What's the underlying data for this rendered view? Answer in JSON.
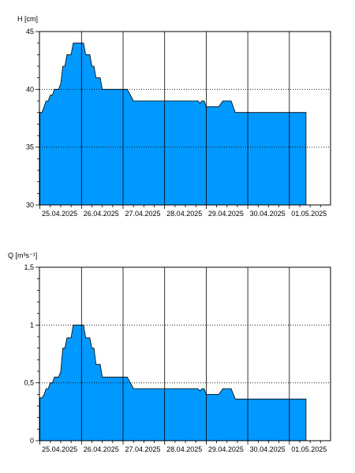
{
  "chart_data": [
    {
      "type": "area",
      "ylabel": "H [cm]",
      "ylim": [
        30,
        45
      ],
      "yticks": [
        30,
        35,
        40,
        45
      ],
      "yticks_labels": [
        "30",
        "35",
        "40",
        "45"
      ],
      "ygrid_dotted": [
        35,
        40
      ],
      "x_dates": [
        "25.04.2025",
        "26.04.2025",
        "27.04.2025",
        "28.04.2025",
        "29.04.2025",
        "30.04.2025",
        "01.05.2025"
      ],
      "fill_color": "#0099ff",
      "x": [
        0.0,
        0.05,
        0.1,
        0.15,
        0.2,
        0.25,
        0.3,
        0.35,
        0.4,
        0.45,
        0.5,
        0.55,
        0.6,
        0.65,
        0.7,
        0.75,
        0.8,
        0.85,
        0.95,
        1.05,
        1.1,
        1.15,
        1.2,
        1.25,
        1.3,
        1.35,
        1.4,
        1.45,
        1.5,
        1.55,
        1.65,
        1.7,
        1.75,
        1.8,
        1.95,
        2.1,
        2.25,
        2.45,
        2.6,
        2.75,
        2.9,
        3.0,
        3.2,
        3.5,
        3.8,
        3.85,
        3.9,
        3.95,
        4.0,
        4.3,
        4.4,
        4.6,
        4.7,
        5.0,
        5.5,
        6.0,
        6.4
      ],
      "values": [
        38,
        38,
        38.5,
        39,
        39,
        39.5,
        39.5,
        40,
        40,
        40,
        40.5,
        42,
        42,
        43,
        43,
        43,
        44,
        44,
        44,
        44,
        43,
        43,
        43,
        42,
        42,
        41,
        41,
        41,
        40,
        40,
        40,
        40,
        40,
        40,
        40,
        40,
        39,
        39,
        39,
        39,
        39,
        39,
        39,
        39,
        39,
        38.8,
        39,
        39,
        38.5,
        38.5,
        39,
        39,
        38,
        38,
        38,
        38,
        38
      ]
    },
    {
      "type": "area",
      "ylabel": "Q [m³s⁻¹]",
      "ylim": [
        0,
        1.5
      ],
      "yticks": [
        0,
        0.5,
        1,
        1.5
      ],
      "yticks_labels": [
        "0",
        "0,5",
        "1",
        "1,5"
      ],
      "ygrid_dotted": [
        0.5,
        1
      ],
      "x_dates": [
        "25.04.2025",
        "26.04.2025",
        "27.04.2025",
        "28.04.2025",
        "29.04.2025",
        "30.04.2025",
        "01.05.2025"
      ],
      "fill_color": "#0099ff",
      "x": [
        0.0,
        0.05,
        0.1,
        0.15,
        0.2,
        0.25,
        0.3,
        0.35,
        0.4,
        0.45,
        0.5,
        0.55,
        0.6,
        0.65,
        0.7,
        0.75,
        0.8,
        0.85,
        0.95,
        1.05,
        1.1,
        1.15,
        1.2,
        1.25,
        1.3,
        1.35,
        1.4,
        1.45,
        1.5,
        1.55,
        1.65,
        1.7,
        1.75,
        1.8,
        1.95,
        2.1,
        2.25,
        2.45,
        2.6,
        2.75,
        2.9,
        3.0,
        3.2,
        3.5,
        3.8,
        3.85,
        3.9,
        3.95,
        4.0,
        4.3,
        4.4,
        4.6,
        4.7,
        5.0,
        5.5,
        6.0,
        6.4
      ],
      "values": [
        0.37,
        0.37,
        0.4,
        0.45,
        0.45,
        0.5,
        0.5,
        0.55,
        0.55,
        0.55,
        0.6,
        0.8,
        0.8,
        0.89,
        0.89,
        0.89,
        1.0,
        1.0,
        1.0,
        1.0,
        0.89,
        0.89,
        0.89,
        0.8,
        0.8,
        0.66,
        0.66,
        0.66,
        0.55,
        0.55,
        0.55,
        0.55,
        0.55,
        0.55,
        0.55,
        0.55,
        0.45,
        0.45,
        0.45,
        0.45,
        0.45,
        0.45,
        0.45,
        0.45,
        0.45,
        0.43,
        0.45,
        0.45,
        0.4,
        0.4,
        0.45,
        0.45,
        0.36,
        0.36,
        0.36,
        0.36,
        0.36
      ]
    }
  ]
}
